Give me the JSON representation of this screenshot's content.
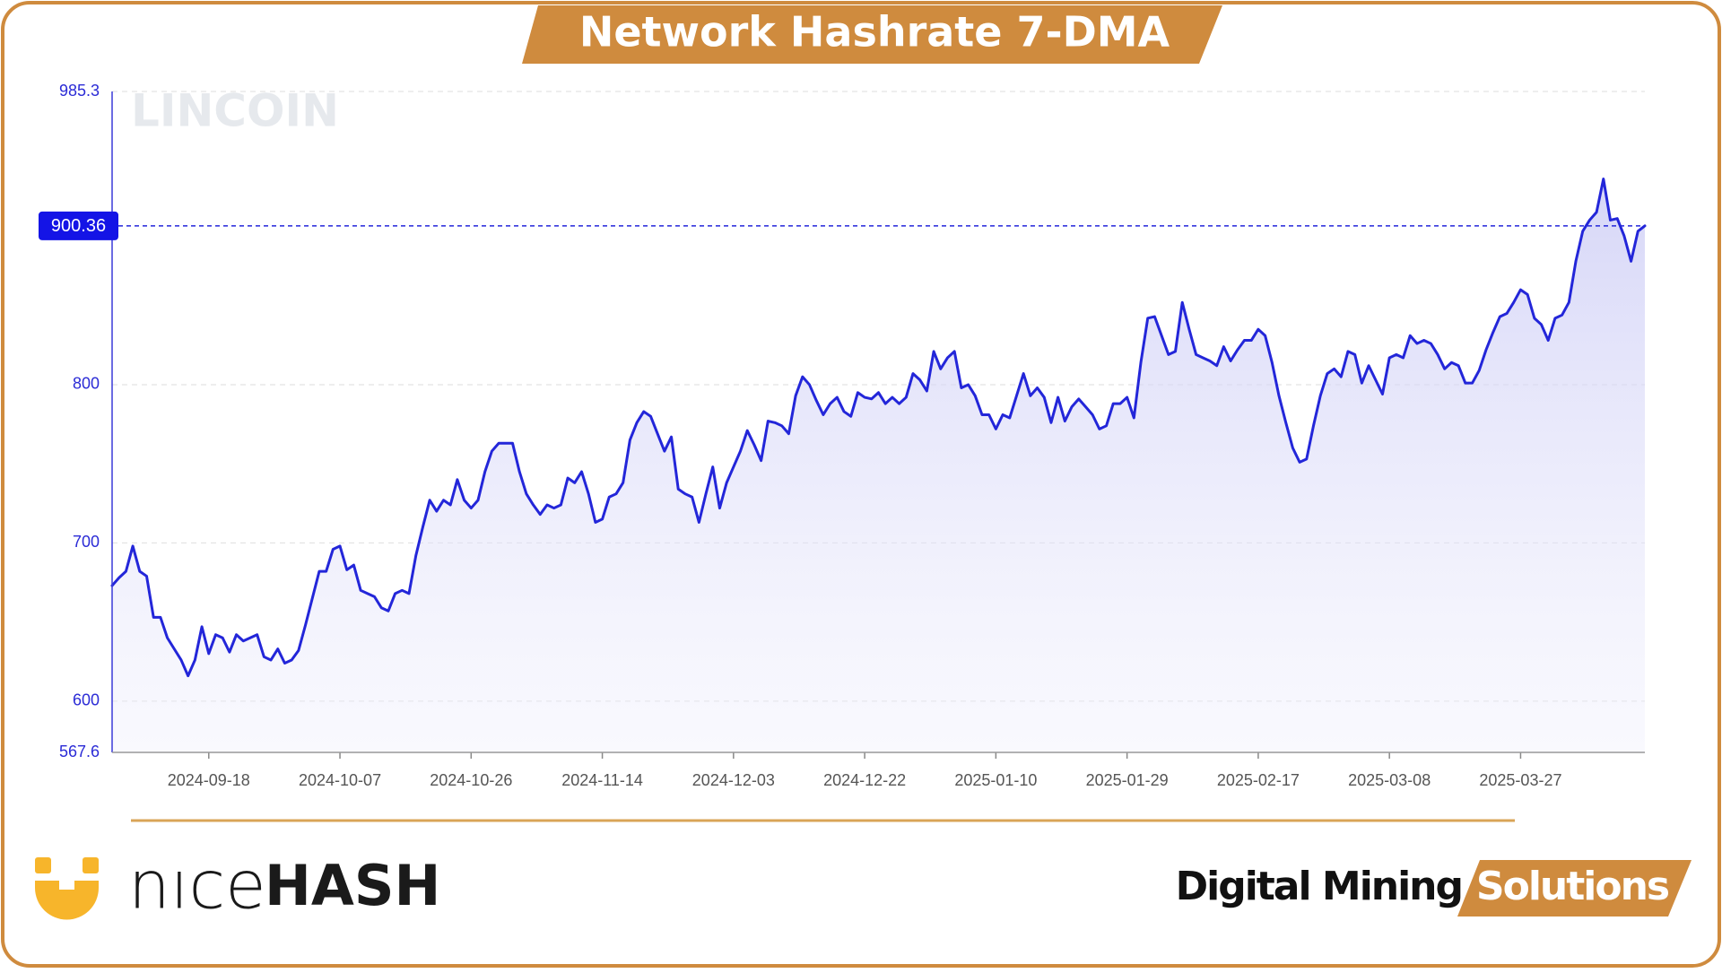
{
  "chart_data": {
    "type": "line",
    "title": "Network Hashrate 7-DMA",
    "x": [
      "2024-09-04",
      "2024-09-05",
      "2024-09-06",
      "2024-09-07",
      "2024-09-08",
      "2024-09-09",
      "2024-09-10",
      "2024-09-11",
      "2024-09-12",
      "2024-09-13",
      "2024-09-14",
      "2024-09-15",
      "2024-09-16",
      "2024-09-17",
      "2024-09-18",
      "2024-09-19",
      "2024-09-20",
      "2024-09-21",
      "2024-09-22",
      "2024-09-23",
      "2024-09-24",
      "2024-09-25",
      "2024-09-26",
      "2024-09-27",
      "2024-09-28",
      "2024-09-29",
      "2024-09-30",
      "2024-10-01",
      "2024-10-02",
      "2024-10-03",
      "2024-10-04",
      "2024-10-05",
      "2024-10-06",
      "2024-10-07",
      "2024-10-08",
      "2024-10-09",
      "2024-10-10",
      "2024-10-11",
      "2024-10-12",
      "2024-10-13",
      "2024-10-14",
      "2024-10-15",
      "2024-10-16",
      "2024-10-17",
      "2024-10-18",
      "2024-10-19",
      "2024-10-20",
      "2024-10-21",
      "2024-10-22",
      "2024-10-23",
      "2024-10-24",
      "2024-10-25",
      "2024-10-26",
      "2024-10-27",
      "2024-10-28",
      "2024-10-29",
      "2024-10-30",
      "2024-10-31",
      "2024-11-01",
      "2024-11-02",
      "2024-11-03",
      "2024-11-04",
      "2024-11-05",
      "2024-11-06",
      "2024-11-07",
      "2024-11-08",
      "2024-11-09",
      "2024-11-10",
      "2024-11-11",
      "2024-11-12",
      "2024-11-13",
      "2024-11-14",
      "2024-11-15",
      "2024-11-16",
      "2024-11-17",
      "2024-11-18",
      "2024-11-19",
      "2024-11-20",
      "2024-11-21",
      "2024-11-22",
      "2024-11-23",
      "2024-11-24",
      "2024-11-25",
      "2024-11-26",
      "2024-11-27",
      "2024-11-28",
      "2024-11-29",
      "2024-11-30",
      "2024-12-01",
      "2024-12-02",
      "2024-12-03",
      "2024-12-04",
      "2024-12-05",
      "2024-12-06",
      "2024-12-07",
      "2024-12-08",
      "2024-12-09",
      "2024-12-10",
      "2024-12-11",
      "2024-12-12",
      "2024-12-13",
      "2024-12-14",
      "2024-12-15",
      "2024-12-16",
      "2024-12-17",
      "2024-12-18",
      "2024-12-19",
      "2024-12-20",
      "2024-12-21",
      "2024-12-22",
      "2024-12-23",
      "2024-12-24",
      "2024-12-25",
      "2024-12-26",
      "2024-12-27",
      "2024-12-28",
      "2024-12-29",
      "2024-12-30",
      "2024-12-31",
      "2025-01-01",
      "2025-01-02",
      "2025-01-03",
      "2025-01-04",
      "2025-01-05",
      "2025-01-06",
      "2025-01-07",
      "2025-01-08",
      "2025-01-09",
      "2025-01-10",
      "2025-01-11",
      "2025-01-12",
      "2025-01-13",
      "2025-01-14",
      "2025-01-15",
      "2025-01-16",
      "2025-01-17",
      "2025-01-18",
      "2025-01-19",
      "2025-01-20",
      "2025-01-21",
      "2025-01-22",
      "2025-01-23",
      "2025-01-24",
      "2025-01-25",
      "2025-01-26",
      "2025-01-27",
      "2025-01-28",
      "2025-01-29",
      "2025-01-30",
      "2025-01-31",
      "2025-02-01",
      "2025-02-02",
      "2025-02-03",
      "2025-02-04",
      "2025-02-05",
      "2025-02-06",
      "2025-02-07",
      "2025-02-08",
      "2025-02-09",
      "2025-02-10",
      "2025-02-11",
      "2025-02-12",
      "2025-02-13",
      "2025-02-14",
      "2025-02-15",
      "2025-02-16",
      "2025-02-17",
      "2025-02-18",
      "2025-02-19",
      "2025-02-20",
      "2025-02-21",
      "2025-02-22",
      "2025-02-23",
      "2025-02-24",
      "2025-02-25",
      "2025-02-26",
      "2025-02-27",
      "2025-02-28",
      "2025-03-01",
      "2025-03-02",
      "2025-03-03",
      "2025-03-04",
      "2025-03-05",
      "2025-03-06",
      "2025-03-07",
      "2025-03-08",
      "2025-03-09",
      "2025-03-10",
      "2025-03-11",
      "2025-03-12",
      "2025-03-13",
      "2025-03-14",
      "2025-03-15",
      "2025-03-16",
      "2025-03-17",
      "2025-03-18",
      "2025-03-19",
      "2025-03-20",
      "2025-03-21",
      "2025-03-22",
      "2025-03-23",
      "2025-03-24",
      "2025-03-25",
      "2025-03-26",
      "2025-03-27",
      "2025-03-28",
      "2025-03-29",
      "2025-03-30",
      "2025-03-31",
      "2025-04-01",
      "2025-04-02",
      "2025-04-03",
      "2025-04-04",
      "2025-04-05",
      "2025-04-06",
      "2025-04-07",
      "2025-04-08",
      "2025-04-09",
      "2025-04-10",
      "2025-04-11",
      "2025-04-12",
      "2025-04-13",
      "2025-04-14"
    ],
    "values": [
      673,
      678,
      682,
      698,
      682,
      679,
      653,
      653,
      640,
      633,
      626,
      616,
      626,
      647,
      630,
      642,
      640,
      631,
      642,
      638,
      640,
      642,
      628,
      626,
      633,
      624,
      626,
      632,
      648,
      665,
      682,
      682,
      696,
      698,
      683,
      686,
      670,
      668,
      666,
      659,
      657,
      668,
      670,
      668,
      692,
      710,
      727,
      720,
      727,
      724,
      740,
      727,
      722,
      727,
      745,
      758,
      763,
      763,
      763,
      745,
      731,
      724,
      718,
      724,
      722,
      724,
      741,
      738,
      745,
      731,
      713,
      715,
      729,
      731,
      738,
      765,
      776,
      783,
      780,
      769,
      758,
      767,
      734,
      731,
      729,
      713,
      731,
      748,
      722,
      738,
      748,
      758,
      771,
      762,
      752,
      777,
      776,
      774,
      769,
      793,
      805,
      800,
      790,
      781,
      788,
      792,
      783,
      780,
      795,
      792,
      791,
      795,
      788,
      792,
      788,
      792,
      807,
      803,
      796,
      821,
      810,
      817,
      821,
      798,
      800,
      793,
      781,
      781,
      772,
      781,
      779,
      793,
      807,
      793,
      798,
      792,
      776,
      792,
      777,
      786,
      791,
      786,
      781,
      772,
      774,
      788,
      788,
      792,
      779,
      814,
      842,
      843,
      831,
      819,
      821,
      852,
      835,
      819,
      817,
      815,
      812,
      824,
      815,
      822,
      828,
      828,
      835,
      831,
      814,
      793,
      776,
      760,
      751,
      753,
      774,
      793,
      807,
      810,
      805,
      821,
      819,
      801,
      812,
      803,
      794,
      817,
      819,
      817,
      831,
      826,
      828,
      826,
      819,
      810,
      814,
      812,
      801,
      801,
      809,
      822,
      833,
      843,
      845,
      852,
      860,
      857,
      842,
      838,
      828,
      842,
      844,
      852,
      878,
      897,
      904,
      909,
      930,
      904,
      905,
      894,
      878,
      897,
      900.36
    ],
    "color": "#2326d9",
    "current_value": 900.36,
    "xlim": [
      "2024-09-04",
      "2025-04-14"
    ],
    "xticks": [
      "2024-09-18",
      "2024-10-07",
      "2024-10-26",
      "2024-11-14",
      "2024-12-03",
      "2024-12-22",
      "2025-01-10",
      "2025-01-29",
      "2025-02-17",
      "2025-03-08",
      "2025-03-27"
    ],
    "ylim": [
      567.6,
      985.3
    ],
    "yticks": [
      567.6,
      600,
      700,
      800,
      985.3
    ],
    "grid": true
  },
  "watermark": "LINCOIN",
  "brand": {
    "light": "nıce",
    "bold": "HASH"
  },
  "tagline": {
    "dark": "Digital Mining",
    "highlight": "Solutions"
  }
}
